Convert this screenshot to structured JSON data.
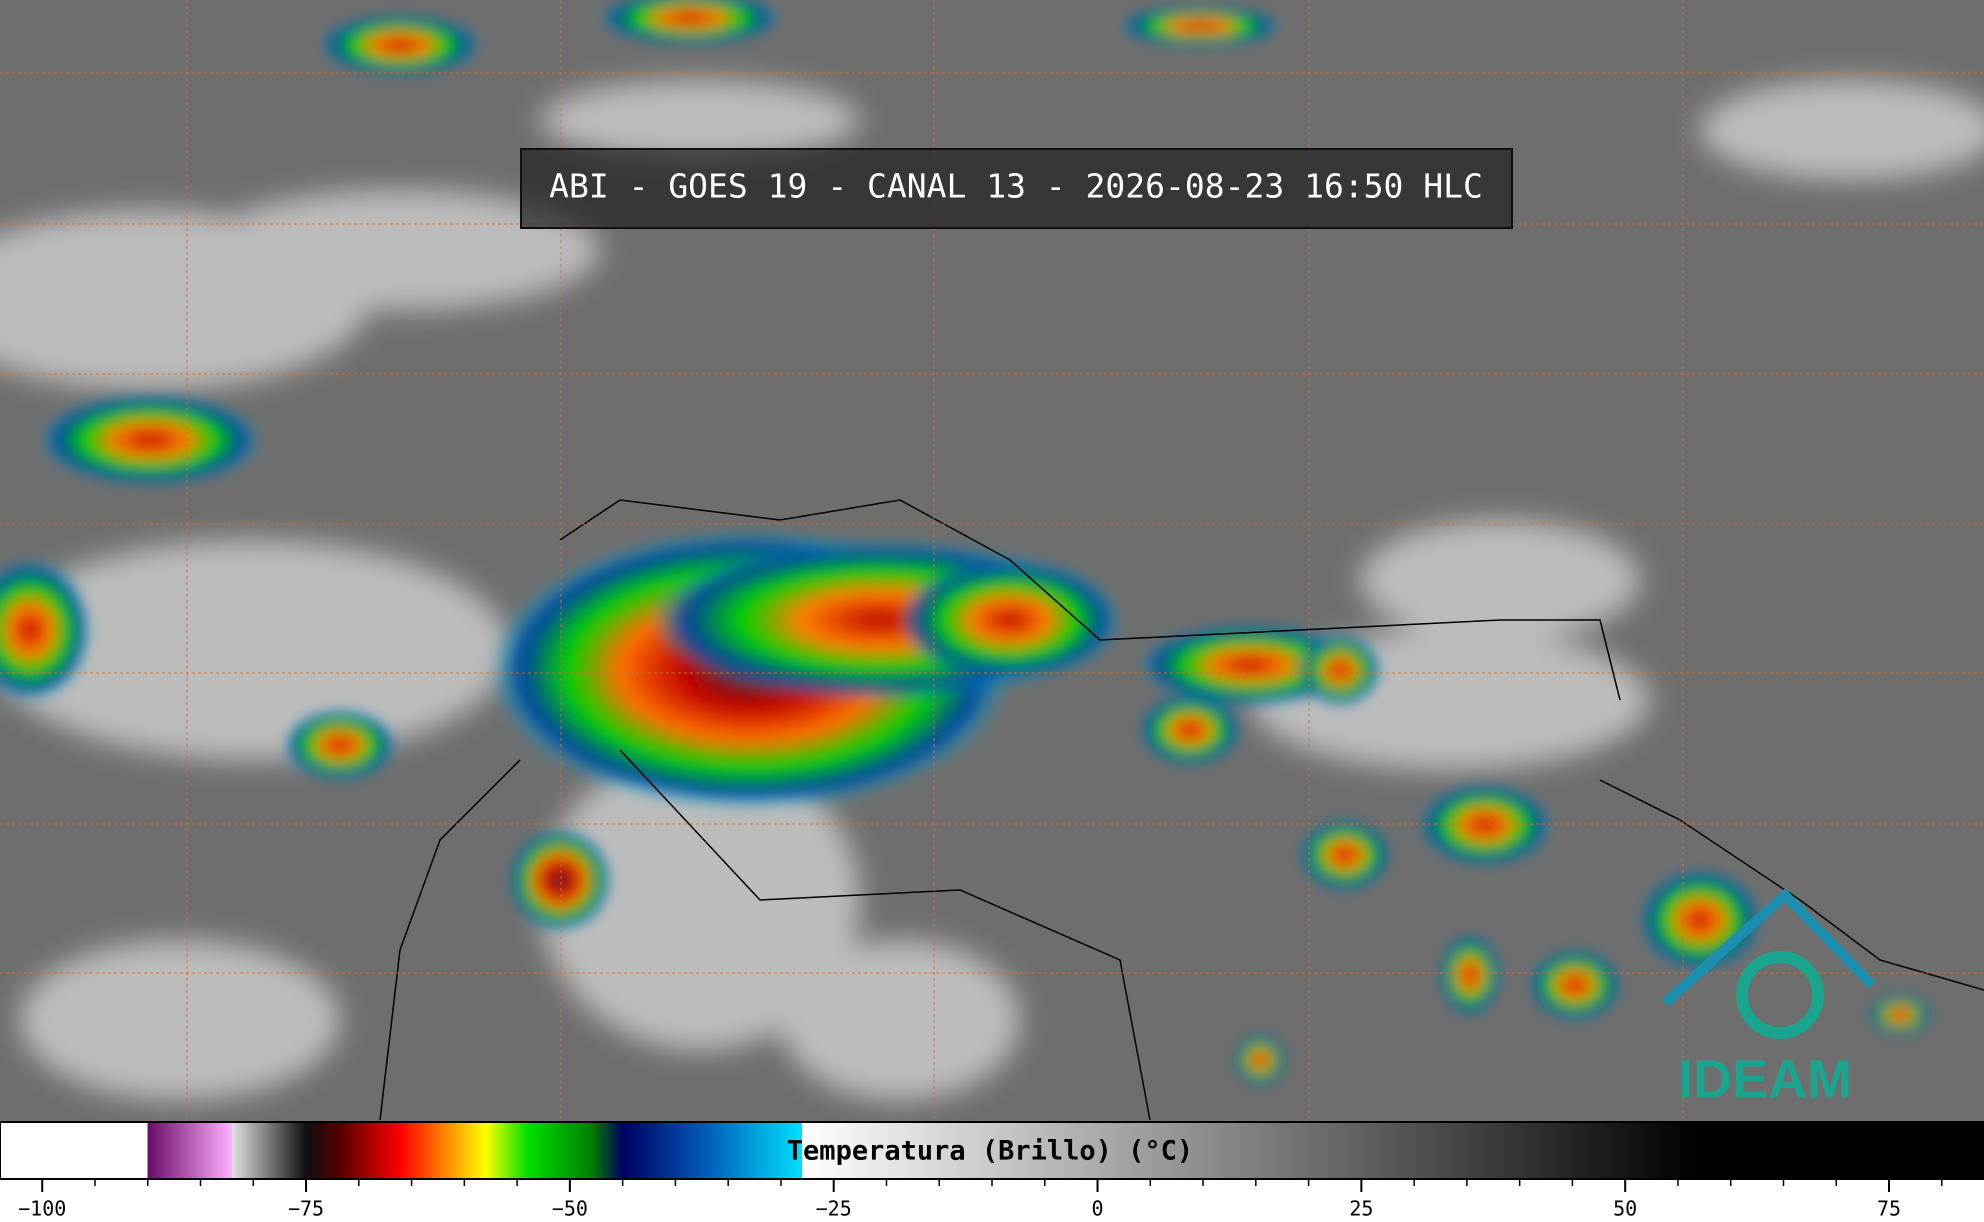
{
  "title": "ABI - GOES 19 - CANAL 13 - 2026-08-23 16:50 HLC",
  "colorbar": {
    "label": "Temperatura (Brillo) (°C)",
    "range": [
      -104,
      84
    ],
    "ticks": [
      {
        "value": -100,
        "label": "−100"
      },
      {
        "value": -75,
        "label": "−75"
      },
      {
        "value": -50,
        "label": "−50"
      },
      {
        "value": -25,
        "label": "−25"
      },
      0,
      25,
      50,
      75
    ],
    "minor_ticks": [
      -95,
      -90,
      -85,
      -80,
      -70,
      -65,
      -60,
      -55,
      -45,
      -40,
      -35,
      -30,
      -20,
      -15,
      -10,
      -5,
      5,
      10,
      15,
      20,
      30,
      35,
      40,
      45,
      55,
      60,
      65,
      70,
      80
    ],
    "stops": [
      {
        "value": -104,
        "color": "#ffffff"
      },
      {
        "value": -90,
        "color": "#ffffff"
      },
      {
        "value": -90,
        "color": "#6a0a6a"
      },
      {
        "value": -82,
        "color": "#ffb0ff"
      },
      {
        "value": -82,
        "color": "#e0e0e0"
      },
      {
        "value": -75,
        "color": "#101010"
      },
      {
        "value": -72,
        "color": "#500000"
      },
      {
        "value": -66,
        "color": "#ff0000"
      },
      {
        "value": -62,
        "color": "#ff8000"
      },
      {
        "value": -58,
        "color": "#ffff00"
      },
      {
        "value": -54,
        "color": "#00e000"
      },
      {
        "value": -48,
        "color": "#008000"
      },
      {
        "value": -45,
        "color": "#000060"
      },
      {
        "value": -38,
        "color": "#0050b0"
      },
      {
        "value": -28,
        "color": "#00e0ff"
      },
      {
        "value": -28,
        "color": "#ffffff"
      },
      {
        "value": 57,
        "color": "#000000"
      },
      {
        "value": 84,
        "color": "#000000"
      }
    ]
  },
  "logo": "IDEAM"
}
